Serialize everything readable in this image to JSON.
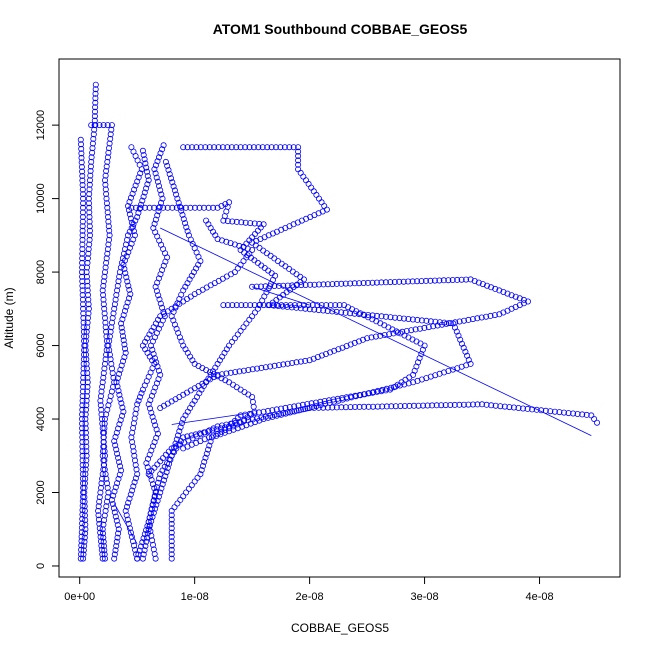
{
  "chart_data": {
    "type": "scatter",
    "title": "ATOM1 Southbound COBBAE_GEOS5",
    "xlabel": "COBBAE_GEOS5",
    "ylabel": "Altitude (m)",
    "xlim": [
      -1.8e-09,
      4.7e-08
    ],
    "ylim": [
      -300,
      13800
    ],
    "x_ticks": [
      0,
      1e-08,
      2e-08,
      3e-08,
      4e-08
    ],
    "x_tick_labels": [
      "0e+00",
      "1e-08",
      "2e-08",
      "3e-08",
      "4e-08"
    ],
    "y_ticks": [
      0,
      2000,
      4000,
      6000,
      8000,
      10000,
      12000
    ],
    "y_tick_labels": [
      "0",
      "2000",
      "4000",
      "6000",
      "8000",
      "10000",
      "12000"
    ],
    "grid": false,
    "legend": "none",
    "color": "#0000ff",
    "marker": "open-circle",
    "series": [
      {
        "points": [
          [
            1.4e-09,
            13100
          ],
          [
            1.3e-09,
            12000
          ],
          [
            1e-09,
            11000
          ],
          [
            8e-10,
            10000
          ],
          [
            9e-10,
            9000
          ],
          [
            6e-10,
            8000
          ],
          [
            8e-10,
            7000
          ],
          [
            5e-10,
            6000
          ],
          [
            7e-10,
            5000
          ],
          [
            5e-10,
            4000
          ],
          [
            6e-10,
            3000
          ],
          [
            4e-10,
            2000
          ],
          [
            5e-10,
            1000
          ],
          [
            3e-10,
            200
          ]
        ]
      },
      {
        "points": [
          [
            1e-10,
            11600
          ],
          [
            3e-10,
            10000
          ],
          [
            2e-10,
            8000
          ],
          [
            4e-10,
            6000
          ],
          [
            2e-10,
            4000
          ],
          [
            3e-10,
            2000
          ],
          [
            1e-10,
            200
          ]
        ]
      },
      {
        "points": [
          [
            1e-09,
            12000
          ],
          [
            2.8e-09,
            12000
          ],
          [
            2.2e-09,
            10500
          ],
          [
            2.6e-09,
            9000
          ],
          [
            2e-09,
            7500
          ],
          [
            2.4e-09,
            6000
          ],
          [
            1.8e-09,
            4500
          ],
          [
            2.2e-09,
            3000
          ],
          [
            1.6e-09,
            1500
          ],
          [
            2e-09,
            200
          ]
        ]
      },
      {
        "points": [
          [
            4.5e-09,
            11400
          ],
          [
            5.4e-09,
            10800
          ],
          [
            4.2e-09,
            9800
          ],
          [
            4.8e-09,
            9000
          ],
          [
            3.8e-09,
            8200
          ],
          [
            4.4e-09,
            7400
          ],
          [
            3.6e-09,
            6600
          ],
          [
            4e-09,
            5800
          ],
          [
            3.2e-09,
            5000
          ],
          [
            3.8e-09,
            4200
          ],
          [
            3e-09,
            3400
          ],
          [
            3.6e-09,
            2600
          ],
          [
            2.8e-09,
            1800
          ],
          [
            3.4e-09,
            1000
          ],
          [
            3e-09,
            200
          ]
        ]
      },
      {
        "points": [
          [
            7.3e-09,
            11450
          ],
          [
            6.5e-09,
            10800
          ],
          [
            7.2e-09,
            10000
          ],
          [
            6.4e-09,
            9200
          ],
          [
            7.6e-09,
            8400
          ],
          [
            6.6e-09,
            7600
          ],
          [
            7.4e-09,
            6800
          ],
          [
            6.2e-09,
            6000
          ],
          [
            7e-09,
            5200
          ],
          [
            6e-09,
            4400
          ],
          [
            6.8e-09,
            3600
          ],
          [
            5.8e-09,
            2800
          ],
          [
            6.6e-09,
            2000
          ],
          [
            6e-09,
            1200
          ],
          [
            6.6e-09,
            200
          ]
        ]
      },
      {
        "points": [
          [
            9e-09,
            11400
          ],
          [
            1.9e-08,
            11400
          ],
          [
            1.9e-08,
            10800
          ],
          [
            2.15e-08,
            9700
          ],
          [
            1.5e-08,
            8800
          ],
          [
            1.95e-08,
            7800
          ],
          [
            1.65e-08,
            7100
          ],
          [
            3.25e-08,
            6600
          ],
          [
            3.4e-08,
            5500
          ],
          [
            2.9e-08,
            5000
          ],
          [
            1.6e-08,
            4000
          ],
          [
            1.15e-08,
            3500
          ],
          [
            1.05e-08,
            2500
          ],
          [
            8e-09,
            1500
          ],
          [
            8e-09,
            200
          ]
        ]
      },
      {
        "points": [
          [
            1.25e-08,
            7100
          ],
          [
            2.3e-08,
            7100
          ],
          [
            3e-08,
            6000
          ],
          [
            2.9e-08,
            5200
          ],
          [
            2.7e-08,
            4800
          ],
          [
            1.6e-08,
            4200
          ],
          [
            1.4e-08,
            4100
          ],
          [
            1.3e-08,
            3800
          ],
          [
            9e-09,
            3500
          ],
          [
            7e-09,
            2500
          ],
          [
            6e-09,
            1200
          ],
          [
            5e-09,
            200
          ]
        ]
      },
      {
        "points": [
          [
            1.5e-08,
            7600
          ],
          [
            3.4e-08,
            7800
          ],
          [
            3.9e-08,
            7200
          ],
          [
            3.65e-08,
            6850
          ],
          [
            2.5e-08,
            6200
          ],
          [
            2e-08,
            5600
          ],
          [
            1.2e-08,
            5200
          ],
          [
            7e-09,
            4300
          ]
        ]
      },
      {
        "points": [
          [
            4.5e-08,
            3900
          ],
          [
            4.45e-08,
            4100
          ],
          [
            3.5e-08,
            4400
          ],
          [
            2e-08,
            4300
          ],
          [
            1.2e-08,
            3800
          ],
          [
            8e-09,
            3200
          ],
          [
            6e-09,
            2500
          ]
        ]
      },
      {
        "points": [
          [
            4.5e-09,
            9750
          ],
          [
            1.2e-08,
            9750
          ],
          [
            1.3e-08,
            9900
          ],
          [
            1.25e-08,
            9400
          ],
          [
            1.6e-08,
            9300
          ],
          [
            1.4e-08,
            8600
          ],
          [
            1.7e-08,
            7900
          ],
          [
            1.55e-08,
            7000
          ],
          [
            1.3e-08,
            6000
          ],
          [
            1.1e-08,
            5000
          ],
          [
            9e-09,
            4000
          ],
          [
            8e-09,
            3000
          ],
          [
            7e-09,
            2000
          ],
          [
            6e-09,
            1000
          ],
          [
            5.5e-09,
            200
          ]
        ]
      },
      {
        "points": [
          [
            1.1e-08,
            9400
          ],
          [
            1.2e-08,
            8900
          ],
          [
            1.5e-08,
            8600
          ],
          [
            1.35e-08,
            8000
          ],
          [
            1e-08,
            7400
          ],
          [
            7e-09,
            6800
          ],
          [
            5.5e-09,
            6000
          ],
          [
            6.5e-09,
            5500
          ],
          [
            5.5e-09,
            4800
          ],
          [
            5e-09,
            4400
          ],
          [
            4.5e-09,
            3500
          ],
          [
            5e-09,
            2500
          ],
          [
            4e-09,
            1500
          ],
          [
            5e-09,
            200
          ]
        ]
      },
      {
        "points": [
          [
            5.5e-09,
            11300
          ],
          [
            6e-09,
            10500
          ],
          [
            5e-09,
            9500
          ],
          [
            4.2e-09,
            9000
          ],
          [
            3.5e-09,
            8000
          ],
          [
            3e-09,
            7000
          ],
          [
            2.5e-09,
            6000
          ],
          [
            3e-09,
            5000
          ],
          [
            2.2e-09,
            4000
          ],
          [
            2e-09,
            3000
          ],
          [
            2.5e-09,
            2000
          ],
          [
            2e-09,
            1000
          ],
          [
            2.2e-09,
            200
          ]
        ]
      },
      {
        "points": [
          [
            7.5e-09,
            11000
          ],
          [
            8.5e-09,
            10000
          ],
          [
            9.5e-09,
            9000
          ],
          [
            1.05e-08,
            8300
          ],
          [
            9e-09,
            7500
          ],
          [
            8e-09,
            6800
          ],
          [
            9e-09,
            6000
          ],
          [
            1e-08,
            5500
          ],
          [
            1.3e-08,
            5000
          ],
          [
            1.5e-08,
            4600
          ],
          [
            1.52e-08,
            4200
          ],
          [
            1.4e-08,
            3900
          ],
          [
            1.2e-08,
            3600
          ],
          [
            9e-09,
            3200
          ]
        ]
      }
    ],
    "lines": [
      {
        "points": [
          [
            7e-09,
            9200
          ],
          [
            4.45e-08,
            3550
          ]
        ]
      },
      {
        "points": [
          [
            1.5e-08,
            7600
          ],
          [
            2e-08,
            7100
          ]
        ]
      },
      {
        "points": [
          [
            1.45e-08,
            4150
          ],
          [
            8e-09,
            3850
          ]
        ]
      },
      {
        "points": [
          [
            3e-09,
            1700
          ],
          [
            5e-09,
            600
          ]
        ]
      }
    ]
  }
}
